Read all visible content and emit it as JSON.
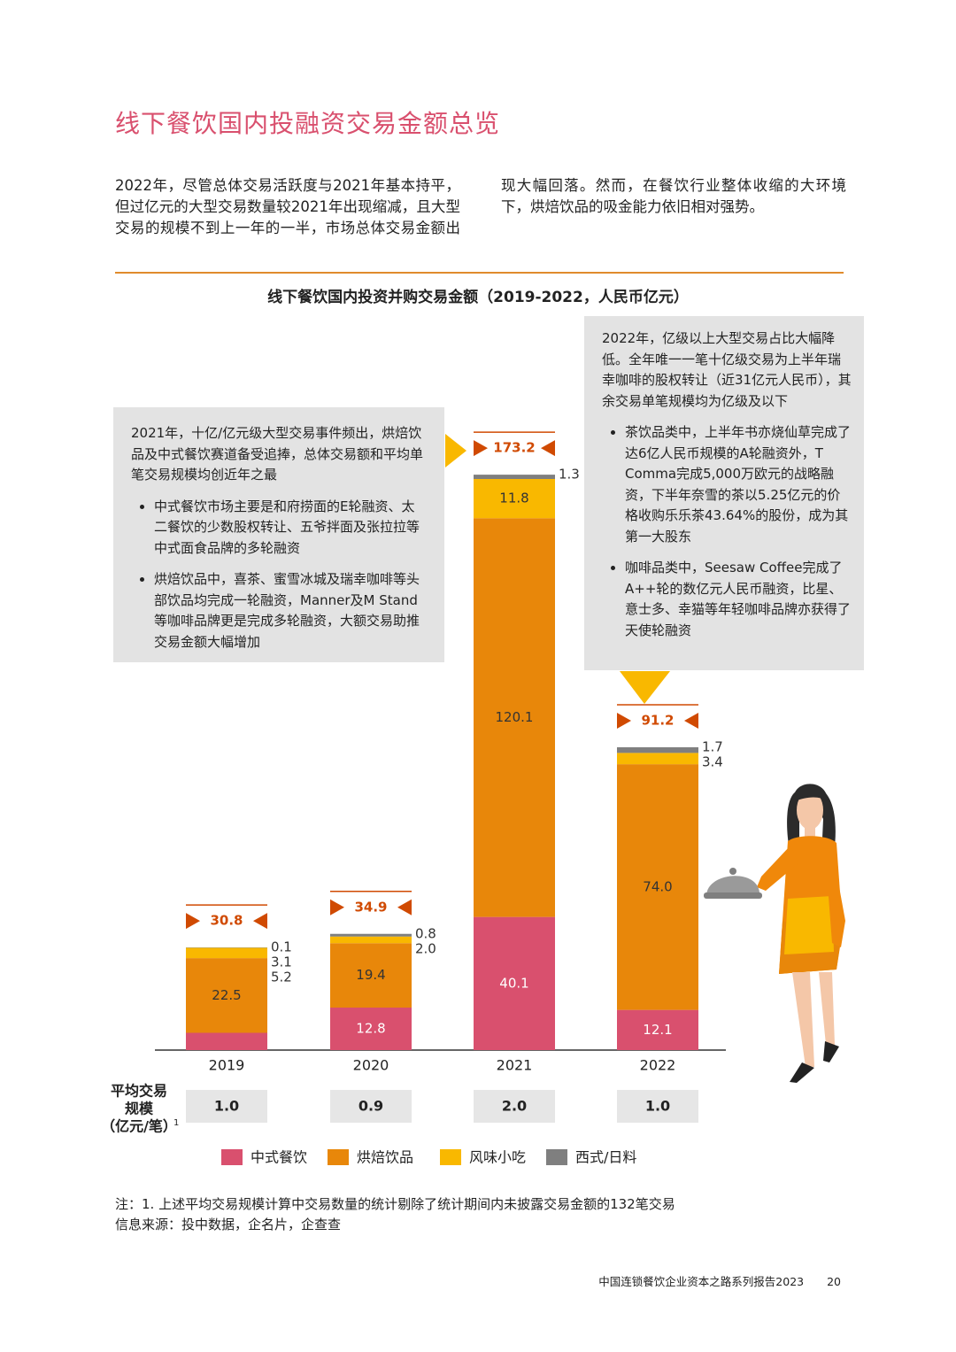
{
  "header": {
    "title": "线下餐饮国内投融资交易金额总览"
  },
  "intro": "2022年，尽管总体交易活跃度与2021年基本持平，但过亿元的大型交易数量较2021年出现缩减，且大型交易的规模不到上一年的一半，市场总体交易金额出现大幅回落。然而，在餐饮行业整体收缩的大环境下，烘焙饮品的吸金能力依旧相对强势。",
  "chart_data": {
    "type": "stacked_bar",
    "title": "线下餐饮国内投资并购交易金额（2019-2022，人民币亿元）",
    "categories": [
      "2019",
      "2020",
      "2021",
      "2022"
    ],
    "series": [
      {
        "name": "中式餐饮",
        "color": "#d9506e",
        "values": [
          5.2,
          12.8,
          40.1,
          12.1
        ]
      },
      {
        "name": "烘焙饮品",
        "color": "#e8870a",
        "values": [
          22.5,
          19.4,
          120.1,
          74.0
        ],
        "value_labels": [
          "22.5",
          "19.4",
          "120.1",
          "74.0"
        ]
      },
      {
        "name": "风味小吃",
        "color": "#f9b800",
        "values": [
          3.1,
          2.0,
          11.8,
          3.4
        ],
        "value_labels": [
          "3.1",
          "2.0",
          "11.8",
          "3.4"
        ]
      },
      {
        "name": "西式/日料",
        "color": "#7f7f7f",
        "values": [
          0.1,
          0.8,
          1.3,
          1.7
        ]
      }
    ],
    "totals": [
      30.8,
      34.9,
      173.2,
      91.2
    ],
    "total_color": "#d04a02",
    "avg_size": {
      "label": [
        "平均交易",
        "规模",
        "（亿元/笔）"
      ],
      "note_ref": "1",
      "values": [
        "1.0",
        "0.9",
        "2.0",
        "1.0"
      ]
    }
  },
  "callouts": [
    {
      "text": "2021年，十亿/亿元级大型交易事件频出，烘焙饮品及中式餐饮赛道备受追捧，总体交易额和平均单笔交易规模均创近年之最",
      "bullets": [
        "中式餐饮市场主要是和府捞面的E轮融资、太二餐饮的少数股权转让、五爷拌面及张拉拉等中式面食品牌的多轮融资",
        "烘焙饮品中，喜茶、蜜雪冰城及瑞幸咖啡等头部饮品均完成一轮融资，Manner及M Stand等咖啡品牌更是完成多轮融资，大额交易助推交易金额大幅增加"
      ]
    },
    {
      "text": "2022年，亿级以上大型交易占比大幅降低。全年唯一一笔十亿级交易为上半年瑞幸咖啡的股权转让（近31亿元人民币），其余交易单笔规模均为亿级及以下",
      "bullets": [
        "茶饮品类中，上半年书亦烧仙草完成了达6亿人民币规模的A轮融资外，T Comma完成5,000万欧元的战略融资，下半年奈雪的茶以5.25亿元的价格收购乐乐茶43.64%的股份，成为其第一大股东",
        "咖啡品类中，Seesaw Coffee完成了A++轮的数亿元人民币融资，比星、意士多、幸猫等年轻咖啡品牌亦获得了天使轮融资"
      ]
    }
  ],
  "notes": [
    "注：1. 上述平均交易规模计算中交易数量的统计剔除了统计期间内未披露交易金额的132笔交易",
    "信息来源：投中数据，企名片，企查查"
  ],
  "footer": {
    "report": "中国连锁餐饮企业资本之路系列报告2023",
    "page": "20"
  }
}
